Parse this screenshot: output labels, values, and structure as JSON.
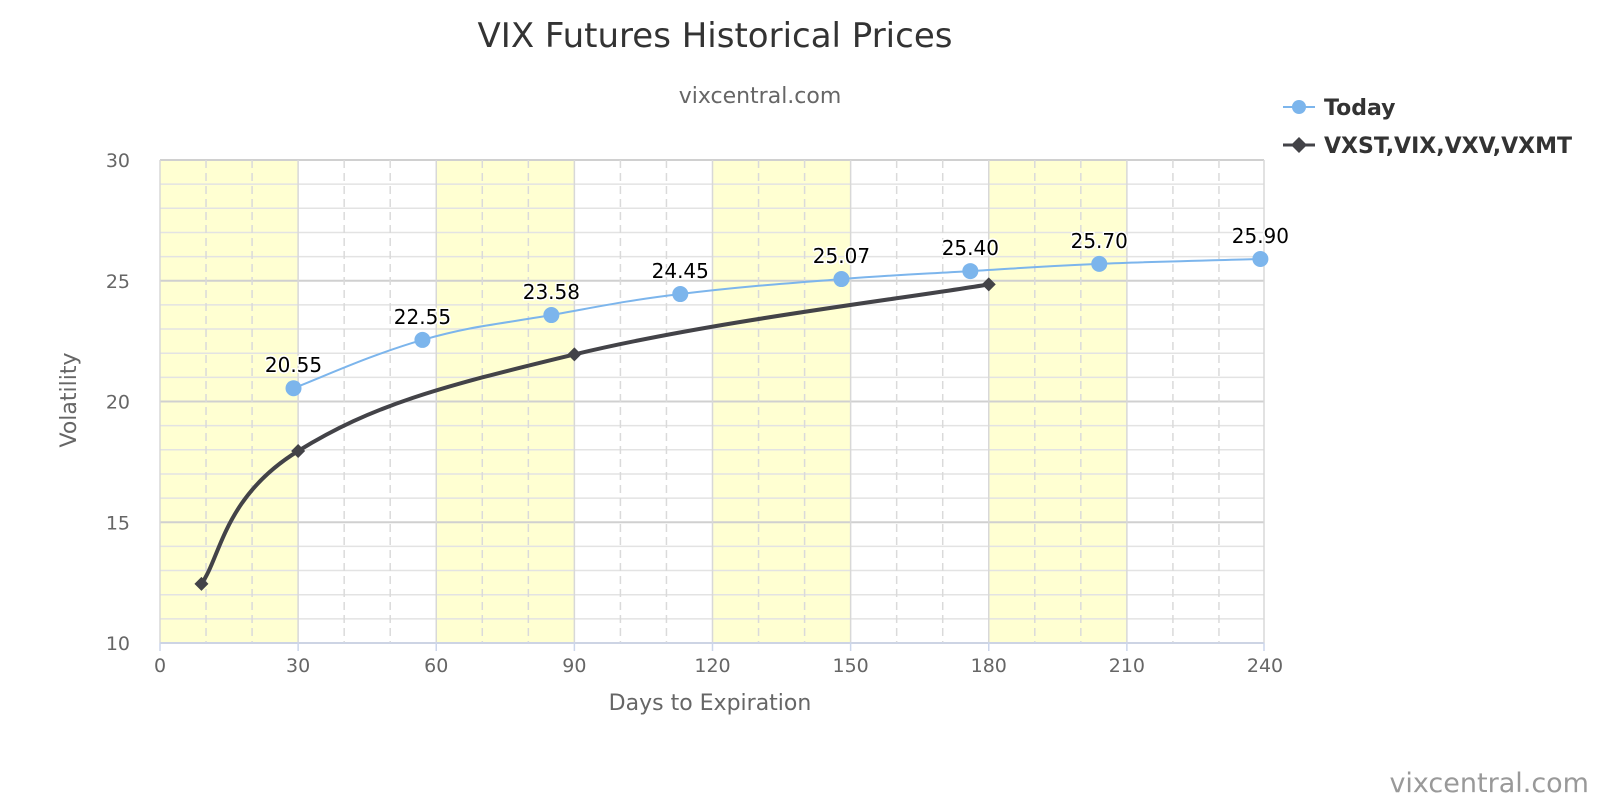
{
  "chart_data": {
    "type": "line",
    "title": "VIX Futures Historical Prices",
    "subtitle": "vixcentral.com",
    "xlabel": "Days to Expiration",
    "ylabel": "Volatility",
    "xlim": [
      0,
      240
    ],
    "ylim": [
      10,
      30
    ],
    "xticks": [
      0,
      30,
      60,
      90,
      120,
      150,
      180,
      210,
      240
    ],
    "yticks": [
      10,
      15,
      20,
      25,
      30
    ],
    "xtick_labels": [
      "0",
      "30",
      "60",
      "90",
      "120",
      "150",
      "180",
      "210",
      "240"
    ],
    "ytick_labels": [
      "10",
      "15",
      "20",
      "25",
      "30"
    ],
    "grid": true,
    "shaded_bands": [
      [
        0,
        30
      ],
      [
        60,
        90
      ],
      [
        120,
        150
      ],
      [
        180,
        210
      ],
      [
        240,
        241
      ]
    ],
    "band_color": "#ffffd2",
    "legend_position": "top-right",
    "series": [
      {
        "name": "Today",
        "color": "#7cb5ec",
        "marker": "circle",
        "x": [
          29,
          57,
          85,
          113,
          148,
          176,
          204,
          239
        ],
        "y": [
          20.55,
          22.55,
          23.58,
          24.45,
          25.07,
          25.4,
          25.7,
          25.9
        ],
        "labels": [
          "20.55",
          "22.55",
          "23.58",
          "24.45",
          "25.07",
          "25.40",
          "25.70",
          "25.90"
        ]
      },
      {
        "name": "VXST,VIX,VXV,VXMT",
        "color": "#434348",
        "marker": "diamond",
        "x": [
          9,
          30,
          90,
          180
        ],
        "y": [
          12.45,
          17.95,
          21.95,
          24.85
        ],
        "labels": []
      }
    ],
    "credit": "vixcentral.com"
  }
}
